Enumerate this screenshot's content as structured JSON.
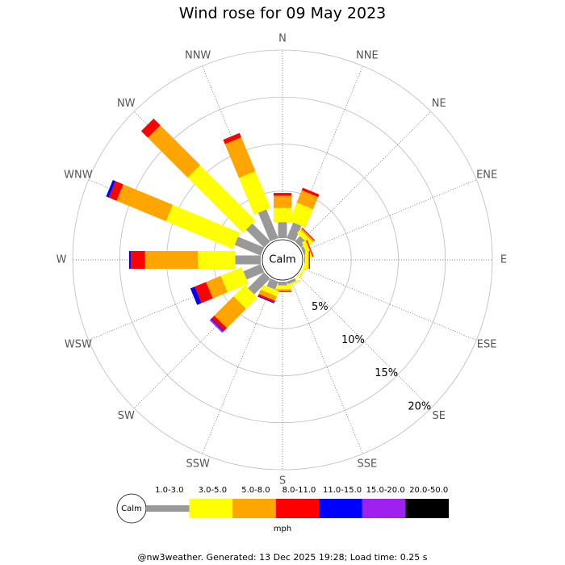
{
  "chart_data": {
    "type": "windrose",
    "title": "Wind rose for 09 May 2023",
    "categories": [
      "N",
      "NNE",
      "NE",
      "ENE",
      "E",
      "ESE",
      "SE",
      "SSE",
      "S",
      "SSW",
      "SW",
      "WSW",
      "W",
      "WNW",
      "NW",
      "NNW"
    ],
    "calm_label": "Calm",
    "unit_label": "mph",
    "rlim": [
      0,
      20
    ],
    "rticks": [
      {
        "value": 5,
        "label": "5%"
      },
      {
        "value": 10,
        "label": "10%"
      },
      {
        "value": 15,
        "label": "15%"
      },
      {
        "value": 20,
        "label": "20%"
      }
    ],
    "series": [
      {
        "name": "1.0-3.0",
        "color": "#999999",
        "values": [
          1.7,
          1.8,
          0.8,
          0.3,
          0.1,
          0,
          0,
          0.3,
          0.4,
          0.9,
          2.4,
          2.0,
          2.7,
          3.0,
          2.7,
          3.3
        ]
      },
      {
        "name": "3.0-5.0",
        "color": "#ffff00",
        "values": [
          1.5,
          2.1,
          0.5,
          0.4,
          0.3,
          0.2,
          0.1,
          0.2,
          0.4,
          0.6,
          1.7,
          2.4,
          4.0,
          7.7,
          8.3,
          4.2
        ]
      },
      {
        "name": "5.0-8.0",
        "color": "#ffa500",
        "values": [
          1.3,
          1.4,
          0.2,
          0.1,
          0.1,
          0,
          0,
          0,
          0.2,
          0.5,
          2.9,
          1.7,
          5.6,
          5.7,
          6.0,
          3.9
        ]
      },
      {
        "name": "8.0-11.0",
        "color": "#ff0000",
        "values": [
          0.3,
          0.3,
          0.1,
          0.1,
          0.1,
          0,
          0,
          0,
          0.1,
          0.2,
          0.4,
          1.3,
          1.5,
          0.9,
          1.0,
          0.5
        ]
      },
      {
        "name": "11.0-15.0",
        "color": "#0000ff",
        "values": [
          0,
          0,
          0,
          0,
          0,
          0,
          0,
          0,
          0,
          0.1,
          0.1,
          0.5,
          0.2,
          0.3,
          0,
          0
        ]
      },
      {
        "name": "15.0-20.0",
        "color": "#a020f0",
        "values": [
          0,
          0,
          0,
          0,
          0,
          0,
          0,
          0,
          0,
          0,
          0.2,
          0,
          0,
          0,
          0,
          0
        ]
      },
      {
        "name": "20.0-50.0",
        "color": "#000000",
        "values": [
          0,
          0,
          0,
          0,
          0,
          0,
          0,
          0,
          0,
          0,
          0,
          0,
          0,
          0,
          0,
          0
        ]
      }
    ],
    "footer": "@nw3weather. Generated: 13 Dec 2025 19:28; Load time: 0.25 s"
  }
}
